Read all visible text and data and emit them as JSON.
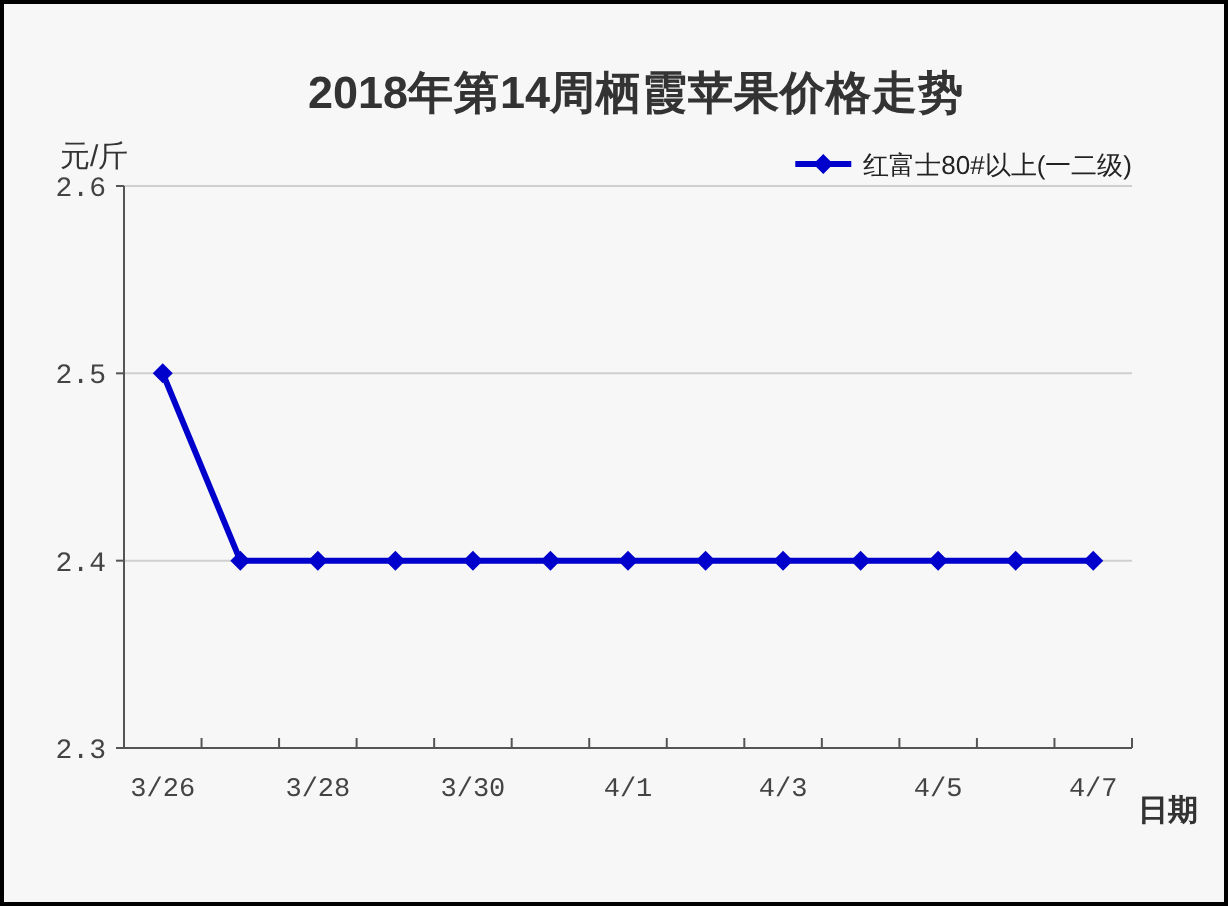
{
  "chart_data": {
    "type": "line",
    "title": "2018年第14周栖霞苹果价格走势",
    "ylabel": "元/斤",
    "xlabel": "日期",
    "categories": [
      "3/26",
      null,
      "3/28",
      null,
      "3/30",
      null,
      "4/1",
      null,
      "4/3",
      null,
      "4/5",
      null,
      "4/7"
    ],
    "series": [
      {
        "name": "红富士80#以上(一二级)",
        "color": "#0000cc",
        "values": [
          2.5,
          2.4,
          2.4,
          2.4,
          2.4,
          2.4,
          2.4,
          2.4,
          2.4,
          2.4,
          2.4,
          2.4,
          2.4
        ]
      }
    ],
    "ylim": [
      2.3,
      2.6
    ],
    "yticks": [
      2.3,
      2.4,
      2.5,
      2.6
    ],
    "grid": "y",
    "legend": "top right",
    "marker": "diamond",
    "line_style": "solid"
  }
}
